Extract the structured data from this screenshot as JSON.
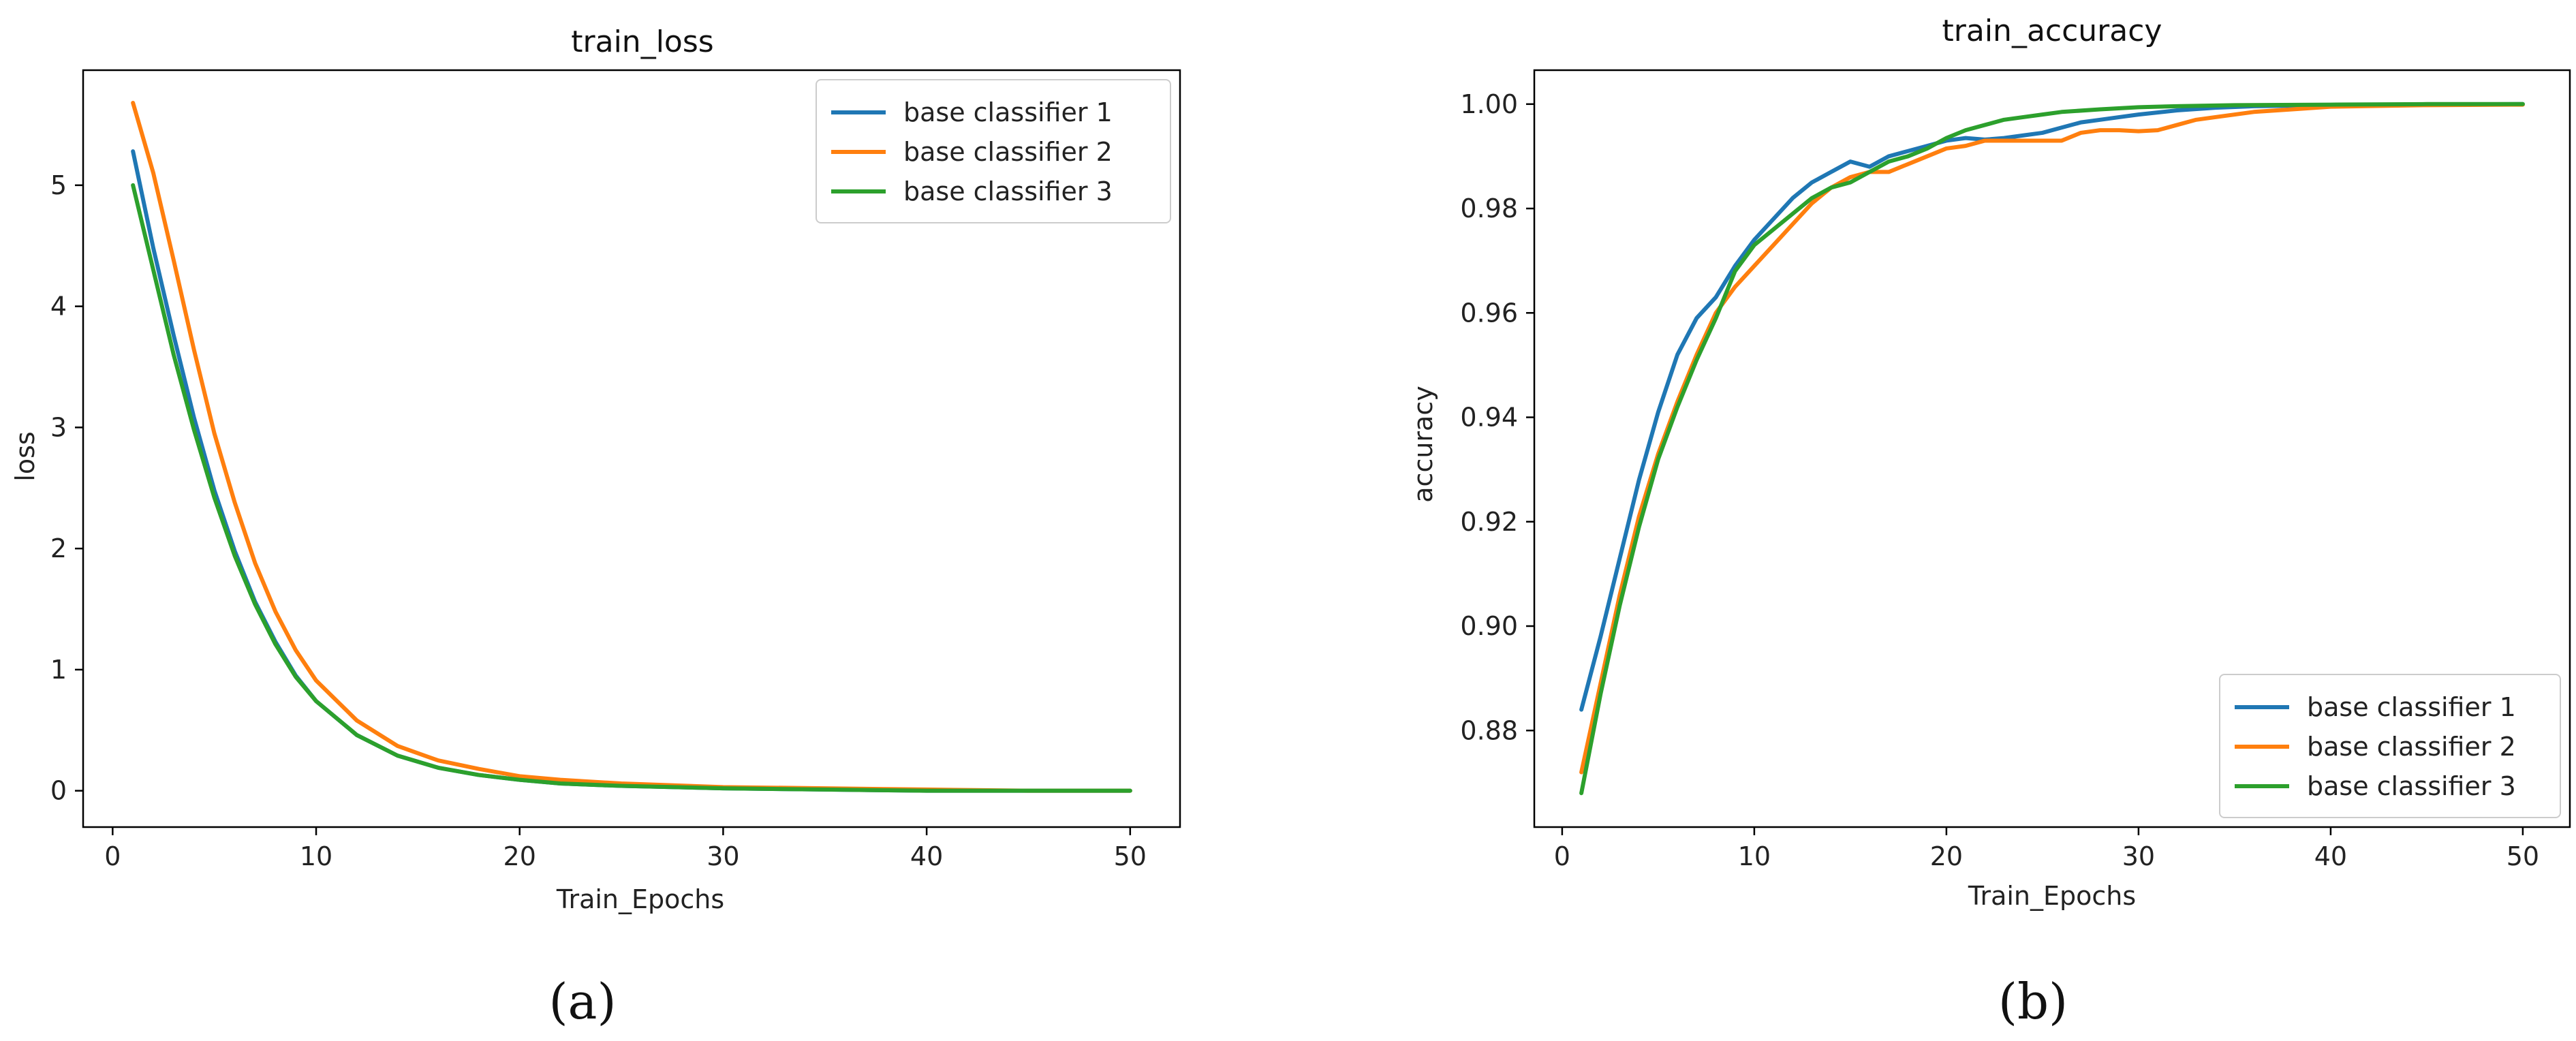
{
  "figure": {
    "panel_labels": [
      "(a)",
      "(b)"
    ]
  },
  "chart_data": [
    {
      "type": "line",
      "title": "train_loss",
      "xlabel": "Train_Epochs",
      "ylabel": "loss",
      "xlim": [
        -1.45,
        52.45
      ],
      "ylim": [
        -0.3,
        5.95
      ],
      "xticks": [
        0,
        10,
        20,
        30,
        40,
        50
      ],
      "yticks": [
        0,
        1,
        2,
        3,
        4,
        5
      ],
      "grid": false,
      "legend_position": "top-right",
      "series": [
        {
          "name": "base classifier 1",
          "color": "#1f77b4",
          "x": [
            1,
            2,
            3,
            4,
            5,
            6,
            7,
            8,
            9,
            10,
            12,
            14,
            16,
            18,
            20,
            22,
            25,
            30,
            35,
            40,
            45,
            50
          ],
          "y": [
            5.28,
            4.48,
            3.76,
            3.08,
            2.48,
            1.98,
            1.56,
            1.23,
            0.95,
            0.74,
            0.46,
            0.29,
            0.19,
            0.13,
            0.09,
            0.06,
            0.04,
            0.02,
            0.01,
            0.0,
            0.0,
            0.0
          ]
        },
        {
          "name": "base classifier 2",
          "color": "#ff7f0e",
          "x": [
            1,
            2,
            3,
            4,
            5,
            6,
            7,
            8,
            9,
            10,
            12,
            14,
            16,
            18,
            20,
            22,
            25,
            30,
            35,
            40,
            45,
            50
          ],
          "y": [
            5.68,
            5.1,
            4.38,
            3.64,
            2.95,
            2.38,
            1.88,
            1.48,
            1.16,
            0.91,
            0.58,
            0.37,
            0.25,
            0.18,
            0.12,
            0.09,
            0.06,
            0.03,
            0.02,
            0.01,
            0.0,
            0.0
          ]
        },
        {
          "name": "base classifier 3",
          "color": "#2ca02c",
          "x": [
            1,
            2,
            3,
            4,
            5,
            6,
            7,
            8,
            9,
            10,
            12,
            14,
            16,
            18,
            20,
            22,
            25,
            30,
            35,
            40,
            45,
            50
          ],
          "y": [
            5.0,
            4.3,
            3.6,
            2.98,
            2.42,
            1.94,
            1.54,
            1.21,
            0.94,
            0.74,
            0.46,
            0.29,
            0.19,
            0.13,
            0.09,
            0.06,
            0.04,
            0.02,
            0.01,
            0.0,
            0.0,
            0.0
          ]
        }
      ]
    },
    {
      "type": "line",
      "title": "train_accuracy",
      "xlabel": "Train_Epochs",
      "ylabel": "accuracy",
      "xlim": [
        -1.45,
        52.45
      ],
      "ylim": [
        0.8615,
        1.0065
      ],
      "xticks": [
        0,
        10,
        20,
        30,
        40,
        50
      ],
      "yticks": [
        0.88,
        0.9,
        0.92,
        0.94,
        0.96,
        0.98,
        1.0
      ],
      "ytick_labels": [
        "0.88",
        "0.90",
        "0.92",
        "0.94",
        "0.96",
        "0.98",
        "1.00"
      ],
      "grid": false,
      "legend_position": "bottom-right",
      "series": [
        {
          "name": "base classifier 1",
          "color": "#1f77b4",
          "x": [
            1,
            2,
            3,
            4,
            5,
            6,
            7,
            8,
            9,
            10,
            11,
            12,
            13,
            14,
            15,
            16,
            17,
            18,
            19,
            20,
            21,
            22,
            23,
            24,
            25,
            26,
            27,
            28,
            29,
            30,
            32,
            34,
            36,
            40,
            45,
            50
          ],
          "y": [
            0.884,
            0.898,
            0.913,
            0.928,
            0.941,
            0.952,
            0.959,
            0.963,
            0.969,
            0.974,
            0.978,
            0.982,
            0.985,
            0.987,
            0.989,
            0.988,
            0.99,
            0.991,
            0.992,
            0.993,
            0.9935,
            0.9932,
            0.9935,
            0.994,
            0.9945,
            0.9955,
            0.9965,
            0.997,
            0.9975,
            0.998,
            0.9988,
            0.9993,
            0.9996,
            0.9998,
            0.9999,
            1.0
          ]
        },
        {
          "name": "base classifier 2",
          "color": "#ff7f0e",
          "x": [
            1,
            2,
            3,
            4,
            5,
            6,
            7,
            8,
            9,
            10,
            11,
            12,
            13,
            14,
            15,
            16,
            17,
            18,
            19,
            20,
            21,
            22,
            23,
            24,
            25,
            26,
            27,
            28,
            29,
            30,
            31,
            32,
            33,
            34,
            36,
            38,
            40,
            45,
            50
          ],
          "y": [
            0.872,
            0.889,
            0.906,
            0.921,
            0.933,
            0.943,
            0.952,
            0.96,
            0.965,
            0.969,
            0.973,
            0.977,
            0.981,
            0.984,
            0.986,
            0.987,
            0.987,
            0.9885,
            0.99,
            0.9915,
            0.992,
            0.993,
            0.993,
            0.993,
            0.993,
            0.993,
            0.9945,
            0.995,
            0.995,
            0.9948,
            0.995,
            0.996,
            0.997,
            0.9975,
            0.9985,
            0.999,
            0.9995,
            0.9998,
            0.9999
          ]
        },
        {
          "name": "base classifier 3",
          "color": "#2ca02c",
          "x": [
            1,
            2,
            3,
            4,
            5,
            6,
            7,
            8,
            9,
            10,
            11,
            12,
            13,
            14,
            15,
            16,
            17,
            18,
            19,
            20,
            21,
            22,
            23,
            24,
            25,
            26,
            28,
            30,
            32,
            35,
            40,
            45,
            50
          ],
          "y": [
            0.868,
            0.887,
            0.904,
            0.919,
            0.932,
            0.942,
            0.951,
            0.959,
            0.968,
            0.973,
            0.976,
            0.979,
            0.982,
            0.984,
            0.985,
            0.987,
            0.989,
            0.99,
            0.9915,
            0.9935,
            0.995,
            0.996,
            0.997,
            0.9975,
            0.998,
            0.9985,
            0.999,
            0.9994,
            0.9996,
            0.9998,
            0.9999,
            1.0,
            1.0
          ]
        }
      ]
    }
  ]
}
